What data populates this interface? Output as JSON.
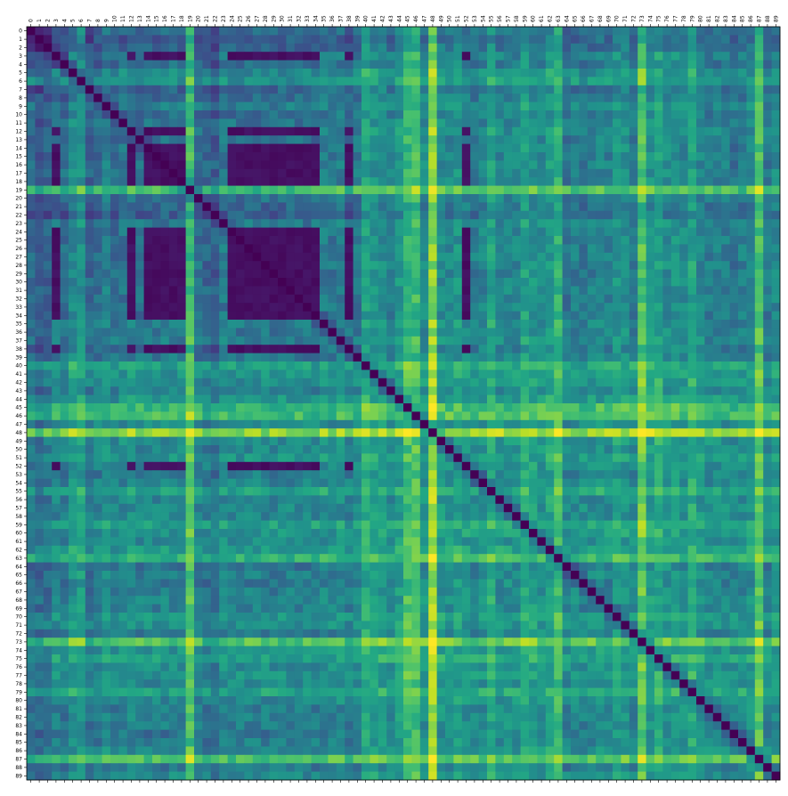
{
  "chart_data": {
    "type": "heatmap",
    "n": 90,
    "x_tick_labels": [
      "0",
      "1",
      "2",
      "3",
      "4",
      "5",
      "6",
      "7",
      "8",
      "9",
      "10",
      "11",
      "12",
      "13",
      "14",
      "15",
      "16",
      "17",
      "18",
      "19",
      "20",
      "21",
      "22",
      "23",
      "24",
      "25",
      "26",
      "27",
      "28",
      "29",
      "30",
      "31",
      "32",
      "33",
      "34",
      "35",
      "36",
      "37",
      "38",
      "39",
      "40",
      "41",
      "42",
      "43",
      "44",
      "45",
      "46",
      "47",
      "48",
      "49",
      "50",
      "51",
      "52",
      "53",
      "54",
      "55",
      "56",
      "57",
      "58",
      "59",
      "60",
      "61",
      "62",
      "63",
      "64",
      "65",
      "66",
      "67",
      "68",
      "69",
      "70",
      "71",
      "72",
      "73",
      "74",
      "75",
      "76",
      "77",
      "78",
      "79",
      "80",
      "81",
      "82",
      "83",
      "84",
      "85",
      "86",
      "87",
      "88",
      "89"
    ],
    "y_tick_labels": [
      "0",
      "1",
      "2",
      "3",
      "4",
      "5",
      "6",
      "7",
      "8",
      "9",
      "10",
      "11",
      "12",
      "13",
      "14",
      "15",
      "16",
      "17",
      "18",
      "19",
      "20",
      "21",
      "22",
      "23",
      "24",
      "25",
      "26",
      "27",
      "28",
      "29",
      "30",
      "31",
      "32",
      "33",
      "34",
      "35",
      "36",
      "37",
      "38",
      "39",
      "40",
      "41",
      "42",
      "43",
      "44",
      "45",
      "46",
      "47",
      "48",
      "49",
      "50",
      "51",
      "52",
      "53",
      "54",
      "55",
      "56",
      "57",
      "58",
      "59",
      "60",
      "61",
      "62",
      "63",
      "64",
      "65",
      "66",
      "67",
      "68",
      "69",
      "70",
      "71",
      "72",
      "73",
      "74",
      "75",
      "76",
      "77",
      "78",
      "79",
      "80",
      "81",
      "82",
      "83",
      "84",
      "85",
      "86",
      "87",
      "88",
      "89"
    ],
    "colormap": "viridis",
    "value_range": [
      0,
      1
    ],
    "diagonal_value": 0,
    "symmetric": true,
    "cluster_block": {
      "members": [
        3,
        12,
        14,
        15,
        16,
        17,
        18,
        24,
        25,
        26,
        27,
        28,
        29,
        30,
        31,
        32,
        33,
        34,
        38,
        52
      ],
      "within_value": 0.02
    },
    "row_profile": [
      0.3,
      0.2,
      0.25,
      0.38,
      0.34,
      0.5,
      0.55,
      0.3,
      0.35,
      0.45,
      0.35,
      0.4,
      0.45,
      0.38,
      0.4,
      0.4,
      0.4,
      0.4,
      0.38,
      0.75,
      0.38,
      0.3,
      0.25,
      0.42,
      0.4,
      0.38,
      0.4,
      0.4,
      0.4,
      0.38,
      0.4,
      0.4,
      0.4,
      0.38,
      0.38,
      0.45,
      0.42,
      0.45,
      0.35,
      0.42,
      0.62,
      0.55,
      0.52,
      0.45,
      0.55,
      0.72,
      0.75,
      0.5,
      0.92,
      0.52,
      0.5,
      0.55,
      0.5,
      0.45,
      0.48,
      0.62,
      0.48,
      0.5,
      0.48,
      0.62,
      0.55,
      0.5,
      0.58,
      0.7,
      0.4,
      0.45,
      0.42,
      0.45,
      0.48,
      0.45,
      0.55,
      0.52,
      0.45,
      0.8,
      0.55,
      0.62,
      0.52,
      0.55,
      0.5,
      0.62,
      0.5,
      0.45,
      0.45,
      0.45,
      0.4,
      0.45,
      0.5,
      0.78,
      0.42,
      0.5
    ]
  }
}
